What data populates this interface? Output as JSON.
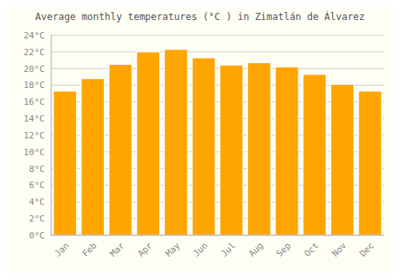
{
  "chart_data": {
    "type": "bar",
    "title": "Average monthly temperatures (°C ) in Zimatlán de Álvarez",
    "categories": [
      "Jan",
      "Feb",
      "Mar",
      "Apr",
      "May",
      "Jun",
      "Jul",
      "Aug",
      "Sep",
      "Oct",
      "Nov",
      "Dec"
    ],
    "values": [
      17.3,
      18.8,
      20.5,
      22.0,
      22.3,
      21.3,
      20.4,
      20.7,
      20.2,
      19.3,
      18.1,
      17.3
    ],
    "color": "#FFA500",
    "ylim": [
      0,
      24
    ],
    "yticks": [
      {
        "value": 0,
        "label": "0°C"
      },
      {
        "value": 2,
        "label": "2°C"
      },
      {
        "value": 4,
        "label": "4°C"
      },
      {
        "value": 6,
        "label": "6°C"
      },
      {
        "value": 8,
        "label": "8°C"
      },
      {
        "value": 10,
        "label": "10°C"
      },
      {
        "value": 12,
        "label": "12°C"
      },
      {
        "value": 14,
        "label": "14°C"
      },
      {
        "value": 16,
        "label": "16°C"
      },
      {
        "value": 18,
        "label": "18°C"
      },
      {
        "value": 20,
        "label": "20°C"
      },
      {
        "value": 22,
        "label": "22°C"
      },
      {
        "value": 24,
        "label": "24°C"
      }
    ],
    "grid": true
  }
}
